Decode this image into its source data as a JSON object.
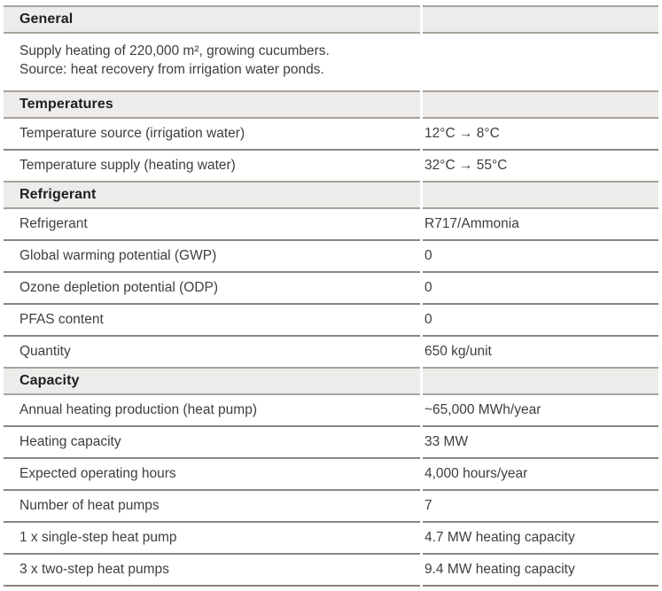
{
  "colors": {
    "header_band_bg": "#edecea",
    "header_band_border": "#a8a29c",
    "row_separator": "#8c857f",
    "header_text": "#1e1e1e",
    "body_text": "#3e3e3e"
  },
  "table": {
    "sections": [
      {
        "title": "General",
        "description_lines": [
          "Supply heating of 220,000 m², growing cucumbers.",
          "Source: heat recovery from irrigation water ponds."
        ],
        "rows": []
      },
      {
        "title": "Temperatures",
        "rows": [
          {
            "label": "Temperature source (irrigation water)",
            "value": "12°C → 8°C"
          },
          {
            "label": "Temperature supply (heating water)",
            "value": "32°C → 55°C"
          }
        ]
      },
      {
        "title": "Refrigerant",
        "rows": [
          {
            "label": "Refrigerant",
            "value": "R717/Ammonia"
          },
          {
            "label": "Global warming potential (GWP)",
            "value": "0"
          },
          {
            "label": "Ozone depletion potential (ODP)",
            "value": "0"
          },
          {
            "label": "PFAS content",
            "value": "0"
          },
          {
            "label": "Quantity",
            "value": "650 kg/unit"
          }
        ]
      },
      {
        "title": "Capacity",
        "rows": [
          {
            "label": "Annual heating production (heat pump)",
            "value": "~65,000 MWh/year"
          },
          {
            "label": "Heating capacity",
            "value": "33 MW"
          },
          {
            "label": "Expected operating hours",
            "value": "4,000 hours/year"
          },
          {
            "label": "Number of heat pumps",
            "value": "7"
          },
          {
            "label": "1 x single-step heat pump",
            "value": "4.7 MW heating capacity"
          },
          {
            "label": "3 x two-step heat pumps",
            "value": "9.4 MW heating capacity"
          }
        ]
      }
    ]
  }
}
